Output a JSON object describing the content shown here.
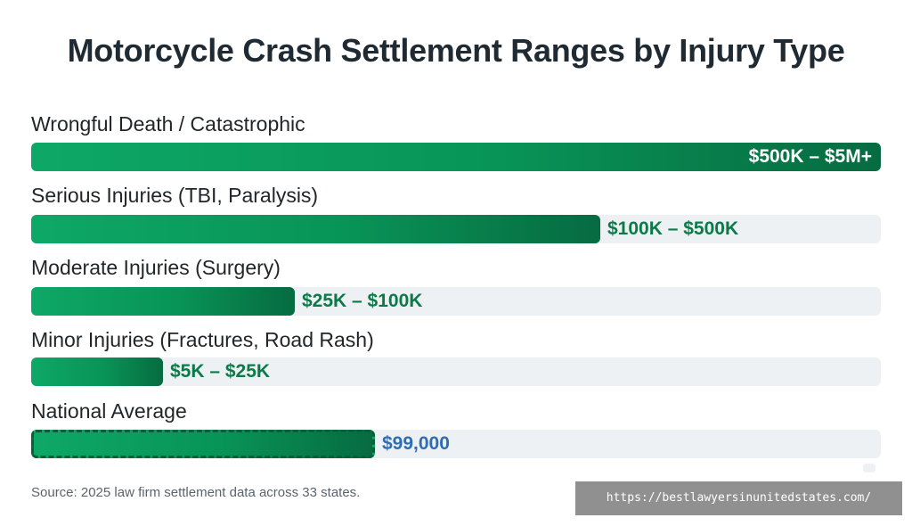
{
  "chart_data": {
    "type": "bar",
    "orientation": "horizontal",
    "title": "Motorcycle Crash Settlement Ranges by Injury Type",
    "categories": [
      "Wrongful Death / Catastrophic",
      "Serious Injuries (TBI, Paralysis)",
      "Moderate Injuries (Surgery)",
      "Minor Injuries (Fractures, Road Rash)",
      "National Average"
    ],
    "value_labels": [
      "$500K – $5M+",
      "$100K – $500K",
      "$25K – $100K",
      "$5K – $25K",
      "$99,000"
    ],
    "bar_fractions": [
      1.0,
      0.67,
      0.31,
      0.155,
      0.405
    ],
    "grid": false,
    "legend": "none",
    "colors": {
      "bar_start": "#0ea866",
      "bar_end": "#076b41",
      "track": "#eef1f4",
      "label_green": "#0b7a48",
      "label_blue": "#2e6db4"
    }
  },
  "footer": {
    "source": "Source: 2025 law firm settlement data across 33 states."
  },
  "watermark": {
    "text": "https://bestlawyersinunitedstates.com/"
  }
}
